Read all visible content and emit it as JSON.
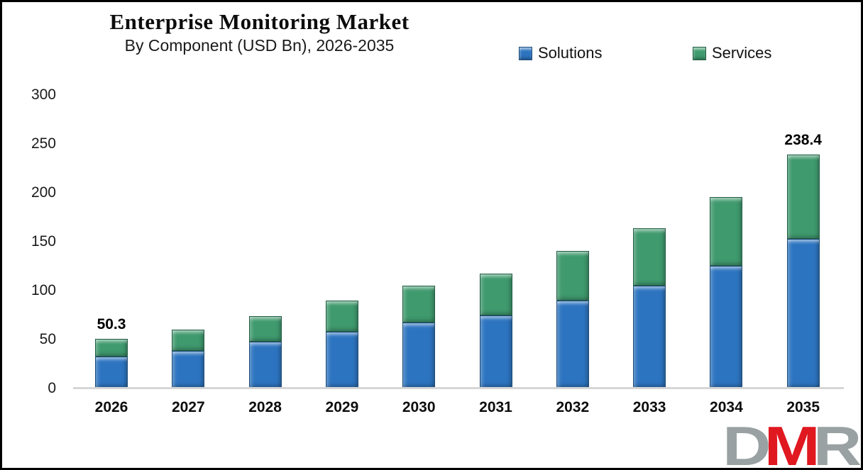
{
  "header": {
    "title": "Enterprise Monitoring Market",
    "subtitle": "By Component (USD Bn), 2026-2035"
  },
  "legend": [
    {
      "label": "Solutions",
      "color": "#2D74C0",
      "border": "#1B4B78"
    },
    {
      "label": "Services",
      "color": "#3F9A6E",
      "border": "#1F5C42"
    }
  ],
  "chart_data": {
    "type": "bar",
    "stacked": true,
    "title": "Enterprise Monitoring Market",
    "subtitle": "By Component (USD Bn), 2026-2035",
    "unit": "USD Bn",
    "categories": [
      "2026",
      "2027",
      "2028",
      "2029",
      "2030",
      "2031",
      "2032",
      "2033",
      "2034",
      "2035"
    ],
    "series": [
      {
        "name": "Solutions",
        "color": "#2D74C0",
        "border": "#1B4B78",
        "values": [
          32.0,
          37.4,
          46.8,
          57.0,
          66.5,
          74.0,
          89.0,
          104.5,
          124.5,
          152.0
        ]
      },
      {
        "name": "Services",
        "color": "#3F9A6E",
        "border": "#1F5C42",
        "values": [
          18.3,
          22.0,
          26.4,
          31.8,
          37.5,
          43.0,
          51.0,
          58.5,
          70.5,
          86.4
        ]
      }
    ],
    "totals": [
      50.3,
      59.4,
      73.2,
      88.8,
      104.0,
      117.0,
      140.0,
      163.0,
      195.0,
      238.4
    ],
    "data_labels": [
      {
        "index": 0,
        "text": "50.3"
      },
      {
        "index": 9,
        "text": "238.4"
      }
    ],
    "ylim": [
      0,
      300
    ],
    "yticks": [
      0,
      50,
      100,
      150,
      200,
      250,
      300
    ],
    "grid": false,
    "legend_position": "top-right"
  },
  "watermark": {
    "letters": [
      {
        "char": "D",
        "color": "#99A1A3"
      },
      {
        "char": "M",
        "color": "#E01820"
      },
      {
        "char": "R",
        "color": "#99A1A3"
      }
    ]
  }
}
